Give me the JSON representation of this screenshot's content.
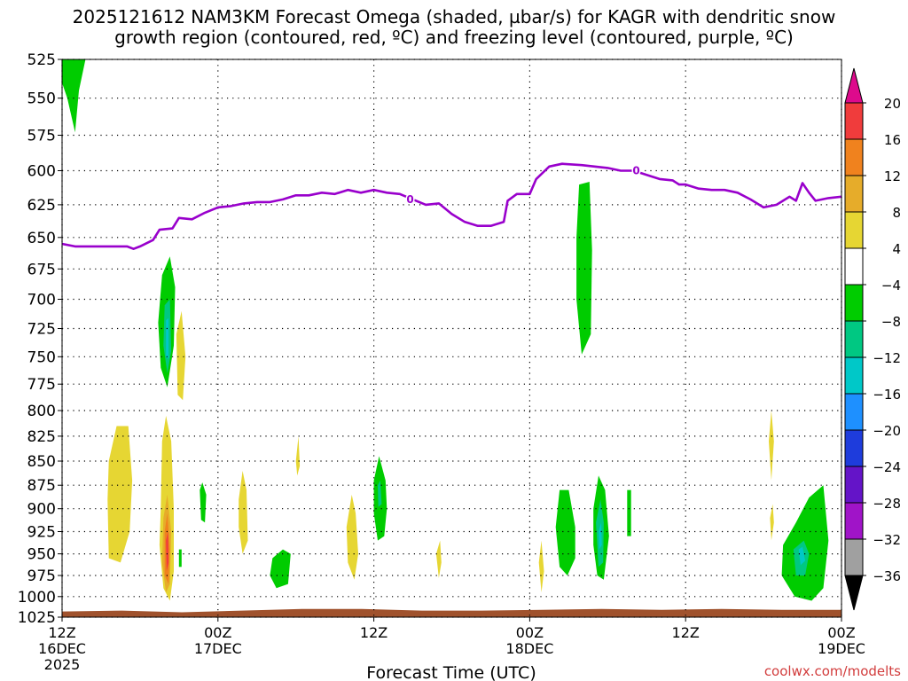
{
  "title_line1": "2025121612 NAM3KM Forecast Omega (shaded, µbar/s) for KAGR with dendritic snow",
  "title_line2": "growth region (contoured, red, ºC) and freezing level (contoured, purple, ºC)",
  "credit": "coolwx.com/modelts",
  "colors": {
    "freezing_line": "#9900cc",
    "ground": "#a0522d",
    "green": "#00cc00",
    "yellow": "#e6d633",
    "cyan": "#00c8c8"
  },
  "chart_data": {
    "type": "heatmap",
    "xlabel": "Forecast Time (UTC)",
    "x_ticks": [
      {
        "hours": 0,
        "label": "12Z",
        "sub": "16DEC",
        "sub2": "2025"
      },
      {
        "hours": 12,
        "label": "00Z",
        "sub": "17DEC",
        "sub2": ""
      },
      {
        "hours": 24,
        "label": "12Z",
        "sub": "",
        "sub2": ""
      },
      {
        "hours": 36,
        "label": "00Z",
        "sub": "18DEC",
        "sub2": ""
      },
      {
        "hours": 48,
        "label": "12Z",
        "sub": "",
        "sub2": ""
      },
      {
        "hours": 60,
        "label": "00Z",
        "sub": "19DEC",
        "sub2": ""
      }
    ],
    "xlim": [
      0,
      60
    ],
    "y_levels": [
      525,
      550,
      575,
      600,
      625,
      650,
      675,
      700,
      725,
      750,
      775,
      800,
      825,
      850,
      875,
      900,
      925,
      950,
      975,
      1000,
      1025
    ],
    "ylim": [
      525,
      1025
    ],
    "y_scale": "log-pressure, inverted",
    "grid": "dotted",
    "colorbar": {
      "labels": [
        "20",
        "16",
        "12",
        "8",
        "4",
        "−4",
        "−8",
        "−12",
        "−16",
        "−20",
        "−24",
        "−28",
        "−32",
        "−36"
      ],
      "bins": [
        {
          "color": "#dd0a8c"
        },
        {
          "color": "#f03c3c"
        },
        {
          "color": "#f0821e"
        },
        {
          "color": "#e6ac2a"
        },
        {
          "color": "#e6d633"
        },
        {
          "color": "#ffffff"
        },
        {
          "color": "#00cc00"
        },
        {
          "color": "#00c882"
        },
        {
          "color": "#00c8c8"
        },
        {
          "color": "#1e90ff"
        },
        {
          "color": "#1e3cdc"
        },
        {
          "color": "#6414c8"
        },
        {
          "color": "#a014c8"
        },
        {
          "color": "#a0a0a0"
        },
        {
          "color": "#000000"
        }
      ]
    },
    "freezing_level": {
      "label": "0",
      "points": [
        [
          0,
          655
        ],
        [
          1,
          657
        ],
        [
          2,
          657
        ],
        [
          3,
          657
        ],
        [
          4,
          657
        ],
        [
          5,
          657
        ],
        [
          5.5,
          659
        ],
        [
          6,
          657
        ],
        [
          7,
          652
        ],
        [
          7.5,
          644
        ],
        [
          8.5,
          643
        ],
        [
          9,
          635
        ],
        [
          10,
          636
        ],
        [
          11,
          631
        ],
        [
          12,
          627
        ],
        [
          13,
          626
        ],
        [
          14,
          624
        ],
        [
          15,
          623
        ],
        [
          16,
          623
        ],
        [
          17,
          621
        ],
        [
          18,
          618
        ],
        [
          19,
          618
        ],
        [
          20,
          616
        ],
        [
          21,
          617
        ],
        [
          22,
          614
        ],
        [
          23,
          616
        ],
        [
          24,
          614
        ],
        [
          25,
          616
        ],
        [
          26,
          617
        ],
        [
          27,
          621
        ],
        [
          28,
          625
        ],
        [
          29,
          624
        ],
        [
          30,
          632
        ],
        [
          31,
          638
        ],
        [
          32,
          641
        ],
        [
          33,
          641
        ],
        [
          34,
          638
        ],
        [
          34.3,
          622
        ],
        [
          35,
          617
        ],
        [
          36,
          617
        ],
        [
          36.5,
          606
        ],
        [
          37.5,
          597
        ],
        [
          38.5,
          595
        ],
        [
          40,
          596
        ],
        [
          41,
          597
        ],
        [
          42,
          598
        ],
        [
          43,
          600
        ],
        [
          44,
          600
        ],
        [
          45,
          603
        ],
        [
          46,
          606
        ],
        [
          47,
          607
        ],
        [
          47.5,
          610
        ],
        [
          48,
          610
        ],
        [
          49,
          613
        ],
        [
          50,
          614
        ],
        [
          51,
          614
        ],
        [
          52,
          616
        ],
        [
          53,
          621
        ],
        [
          54,
          627
        ],
        [
          55,
          625
        ],
        [
          56,
          619
        ],
        [
          56.5,
          622
        ],
        [
          57,
          609
        ],
        [
          57.5,
          616
        ],
        [
          58,
          622
        ],
        [
          59,
          620
        ],
        [
          60,
          619
        ]
      ]
    },
    "freezing_level_labels": [
      {
        "hours": 26.8,
        "pressure": 621
      },
      {
        "hours": 44.2,
        "pressure": 600
      }
    ],
    "regions": [
      {
        "level": "-4",
        "points": [
          [
            0,
            525
          ],
          [
            1.8,
            525
          ],
          [
            1.3,
            545
          ],
          [
            1,
            573
          ],
          [
            0.4,
            550
          ],
          [
            0,
            540
          ]
        ]
      },
      {
        "level": "-4",
        "points": [
          [
            7.7,
            680
          ],
          [
            8.3,
            665
          ],
          [
            8.7,
            690
          ],
          [
            8.6,
            740
          ],
          [
            8.1,
            778
          ],
          [
            7.6,
            760
          ],
          [
            7.4,
            720
          ]
        ]
      },
      {
        "level": "-8",
        "points": [
          [
            7.9,
            705
          ],
          [
            8.3,
            700
          ],
          [
            8.4,
            745
          ],
          [
            8.1,
            765
          ],
          [
            7.8,
            740
          ]
        ]
      },
      {
        "level": "-12",
        "points": [
          [
            8.0,
            718
          ],
          [
            8.2,
            716
          ],
          [
            8.2,
            752
          ],
          [
            8.0,
            750
          ]
        ]
      },
      {
        "level": "4",
        "points": [
          [
            8.8,
            730
          ],
          [
            9.2,
            710
          ],
          [
            9.5,
            750
          ],
          [
            9.3,
            790
          ],
          [
            8.9,
            785
          ]
        ]
      },
      {
        "level": "4",
        "points": [
          [
            3.6,
            850
          ],
          [
            4.2,
            815
          ],
          [
            5.1,
            815
          ],
          [
            5.4,
            870
          ],
          [
            5.2,
            925
          ],
          [
            4.5,
            960
          ],
          [
            3.6,
            955
          ],
          [
            3.5,
            890
          ]
        ]
      },
      {
        "level": "4",
        "points": [
          [
            7.6,
            900
          ],
          [
            7.7,
            830
          ],
          [
            8.0,
            805
          ],
          [
            8.4,
            830
          ],
          [
            8.6,
            900
          ],
          [
            8.6,
            970
          ],
          [
            8.3,
            1005
          ],
          [
            7.8,
            990
          ],
          [
            7.5,
            940
          ]
        ]
      },
      {
        "level": "8",
        "points": [
          [
            7.8,
            910
          ],
          [
            8.1,
            885
          ],
          [
            8.4,
            925
          ],
          [
            8.3,
            985
          ],
          [
            8.0,
            995
          ],
          [
            7.7,
            960
          ]
        ]
      },
      {
        "level": "12",
        "points": [
          [
            7.9,
            925
          ],
          [
            8.1,
            905
          ],
          [
            8.3,
            945
          ],
          [
            8.2,
            985
          ],
          [
            7.9,
            975
          ]
        ]
      },
      {
        "level": "16",
        "points": [
          [
            8.0,
            935
          ],
          [
            8.15,
            925
          ],
          [
            8.2,
            960
          ],
          [
            8.05,
            970
          ]
        ]
      },
      {
        "level": "-4",
        "points": [
          [
            9.0,
            945
          ],
          [
            9.2,
            945
          ],
          [
            9.2,
            965
          ],
          [
            9.0,
            965
          ]
        ]
      },
      {
        "level": "-4",
        "points": [
          [
            10.6,
            880
          ],
          [
            10.8,
            872
          ],
          [
            11.1,
            885
          ],
          [
            11.0,
            915
          ],
          [
            10.7,
            912
          ]
        ]
      },
      {
        "level": "4",
        "points": [
          [
            13.6,
            890
          ],
          [
            13.9,
            860
          ],
          [
            14.2,
            880
          ],
          [
            14.3,
            935
          ],
          [
            13.9,
            950
          ],
          [
            13.6,
            920
          ]
        ]
      },
      {
        "level": "4",
        "points": [
          [
            18.0,
            850
          ],
          [
            18.2,
            825
          ],
          [
            18.3,
            855
          ],
          [
            18.1,
            865
          ]
        ]
      },
      {
        "level": "-4",
        "points": [
          [
            16.2,
            955
          ],
          [
            17.0,
            945
          ],
          [
            17.6,
            950
          ],
          [
            17.4,
            985
          ],
          [
            16.5,
            990
          ],
          [
            16.0,
            975
          ]
        ]
      },
      {
        "level": "4",
        "points": [
          [
            21.9,
            920
          ],
          [
            22.3,
            885
          ],
          [
            22.6,
            905
          ],
          [
            22.8,
            950
          ],
          [
            22.5,
            980
          ],
          [
            22.0,
            960
          ]
        ]
      },
      {
        "level": "-4",
        "points": [
          [
            24.0,
            870
          ],
          [
            24.4,
            845
          ],
          [
            24.9,
            870
          ],
          [
            25.0,
            900
          ],
          [
            24.8,
            930
          ],
          [
            24.3,
            935
          ],
          [
            24.0,
            905
          ]
        ]
      },
      {
        "level": "-8",
        "points": [
          [
            24.3,
            875
          ],
          [
            24.5,
            870
          ],
          [
            24.6,
            895
          ],
          [
            24.35,
            898
          ]
        ]
      },
      {
        "level": "4",
        "points": [
          [
            28.8,
            950
          ],
          [
            29.1,
            935
          ],
          [
            29.2,
            960
          ],
          [
            29.0,
            978
          ]
        ]
      },
      {
        "level": "4",
        "points": [
          [
            36.7,
            960
          ],
          [
            36.9,
            935
          ],
          [
            37.1,
            970
          ],
          [
            36.9,
            995
          ]
        ]
      },
      {
        "level": "-4",
        "points": [
          [
            38.3,
            880
          ],
          [
            39.0,
            880
          ],
          [
            39.5,
            920
          ],
          [
            39.5,
            955
          ],
          [
            38.9,
            975
          ],
          [
            38.3,
            965
          ],
          [
            38.0,
            920
          ]
        ]
      },
      {
        "level": "-4",
        "points": [
          [
            39.8,
            610
          ],
          [
            40.6,
            608
          ],
          [
            40.8,
            660
          ],
          [
            40.7,
            730
          ],
          [
            40.0,
            748
          ],
          [
            39.6,
            700
          ],
          [
            39.6,
            650
          ]
        ]
      },
      {
        "level": "-4",
        "points": [
          [
            40.9,
            900
          ],
          [
            41.3,
            865
          ],
          [
            41.8,
            880
          ],
          [
            42.1,
            930
          ],
          [
            41.7,
            980
          ],
          [
            41.2,
            975
          ],
          [
            40.9,
            940
          ]
        ]
      },
      {
        "level": "-8",
        "points": [
          [
            41.1,
            915
          ],
          [
            41.45,
            890
          ],
          [
            41.7,
            915
          ],
          [
            41.65,
            960
          ],
          [
            41.3,
            965
          ]
        ]
      },
      {
        "level": "-12",
        "points": [
          [
            41.3,
            925
          ],
          [
            41.5,
            915
          ],
          [
            41.55,
            940
          ],
          [
            41.35,
            945
          ]
        ]
      },
      {
        "level": "-4",
        "points": [
          [
            43.5,
            880
          ],
          [
            43.8,
            880
          ],
          [
            43.8,
            930
          ],
          [
            43.5,
            930
          ]
        ]
      },
      {
        "level": "4",
        "points": [
          [
            54.4,
            830
          ],
          [
            54.6,
            800
          ],
          [
            54.8,
            830
          ],
          [
            54.6,
            870
          ]
        ]
      },
      {
        "level": "4",
        "points": [
          [
            54.5,
            910
          ],
          [
            54.7,
            895
          ],
          [
            54.8,
            915
          ],
          [
            54.6,
            935
          ]
        ]
      },
      {
        "level": "-4",
        "points": [
          [
            55.5,
            940
          ],
          [
            56.5,
            915
          ],
          [
            57.5,
            888
          ],
          [
            58.6,
            875
          ],
          [
            59.0,
            935
          ],
          [
            58.6,
            990
          ],
          [
            57.7,
            1005
          ],
          [
            56.4,
            1000
          ],
          [
            55.4,
            975
          ]
        ]
      },
      {
        "level": "-8",
        "points": [
          [
            56.3,
            945
          ],
          [
            57.1,
            935
          ],
          [
            57.5,
            950
          ],
          [
            57.2,
            975
          ],
          [
            56.5,
            975
          ]
        ]
      },
      {
        "level": "-12",
        "points": [
          [
            56.7,
            945
          ],
          [
            57.0,
            942
          ],
          [
            57.2,
            958
          ],
          [
            56.85,
            963
          ]
        ]
      }
    ],
    "ground_pressure": [
      1018,
      1017,
      1019,
      1017,
      1015,
      1015,
      1017,
      1017,
      1016,
      1015,
      1016,
      1015,
      1016,
      1016
    ]
  }
}
